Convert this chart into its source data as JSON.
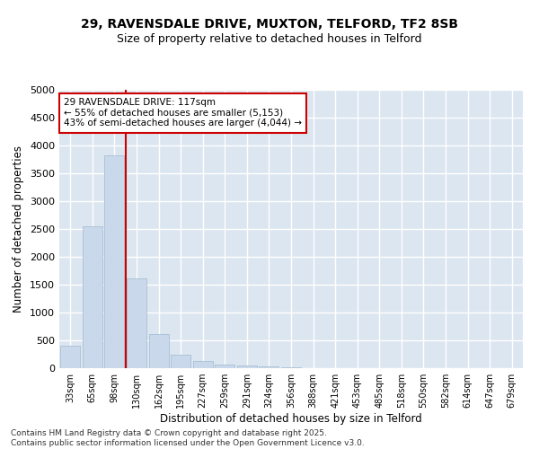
{
  "title1": "29, RAVENSDALE DRIVE, MUXTON, TELFORD, TF2 8SB",
  "title2": "Size of property relative to detached houses in Telford",
  "xlabel": "Distribution of detached houses by size in Telford",
  "ylabel": "Number of detached properties",
  "categories": [
    "33sqm",
    "65sqm",
    "98sqm",
    "130sqm",
    "162sqm",
    "195sqm",
    "227sqm",
    "259sqm",
    "291sqm",
    "324sqm",
    "356sqm",
    "388sqm",
    "421sqm",
    "453sqm",
    "485sqm",
    "518sqm",
    "550sqm",
    "582sqm",
    "614sqm",
    "647sqm",
    "679sqm"
  ],
  "values": [
    400,
    2550,
    3820,
    1620,
    620,
    250,
    130,
    60,
    50,
    30,
    10,
    5,
    3,
    2,
    2,
    1,
    1,
    1,
    0,
    0,
    0
  ],
  "bar_color": "#c9d9eb",
  "bar_edge_color": "#a0b8d0",
  "redline_x": 2.5,
  "annotation_text": "29 RAVENSDALE DRIVE: 117sqm\n← 55% of detached houses are smaller (5,153)\n43% of semi-detached houses are larger (4,044) →",
  "annotation_box_color": "#ffffff",
  "annotation_box_edge_color": "#cc0000",
  "ylim": [
    0,
    5000
  ],
  "yticks": [
    0,
    500,
    1000,
    1500,
    2000,
    2500,
    3000,
    3500,
    4000,
    4500,
    5000
  ],
  "background_color": "#dce6f0",
  "grid_color": "#ffffff",
  "footer1": "Contains HM Land Registry data © Crown copyright and database right 2025.",
  "footer2": "Contains public sector information licensed under the Open Government Licence v3.0.",
  "title_fontsize": 10,
  "subtitle_fontsize": 9,
  "tick_fontsize": 7,
  "label_fontsize": 8.5,
  "annotation_fontsize": 7.5,
  "footer_fontsize": 6.5
}
